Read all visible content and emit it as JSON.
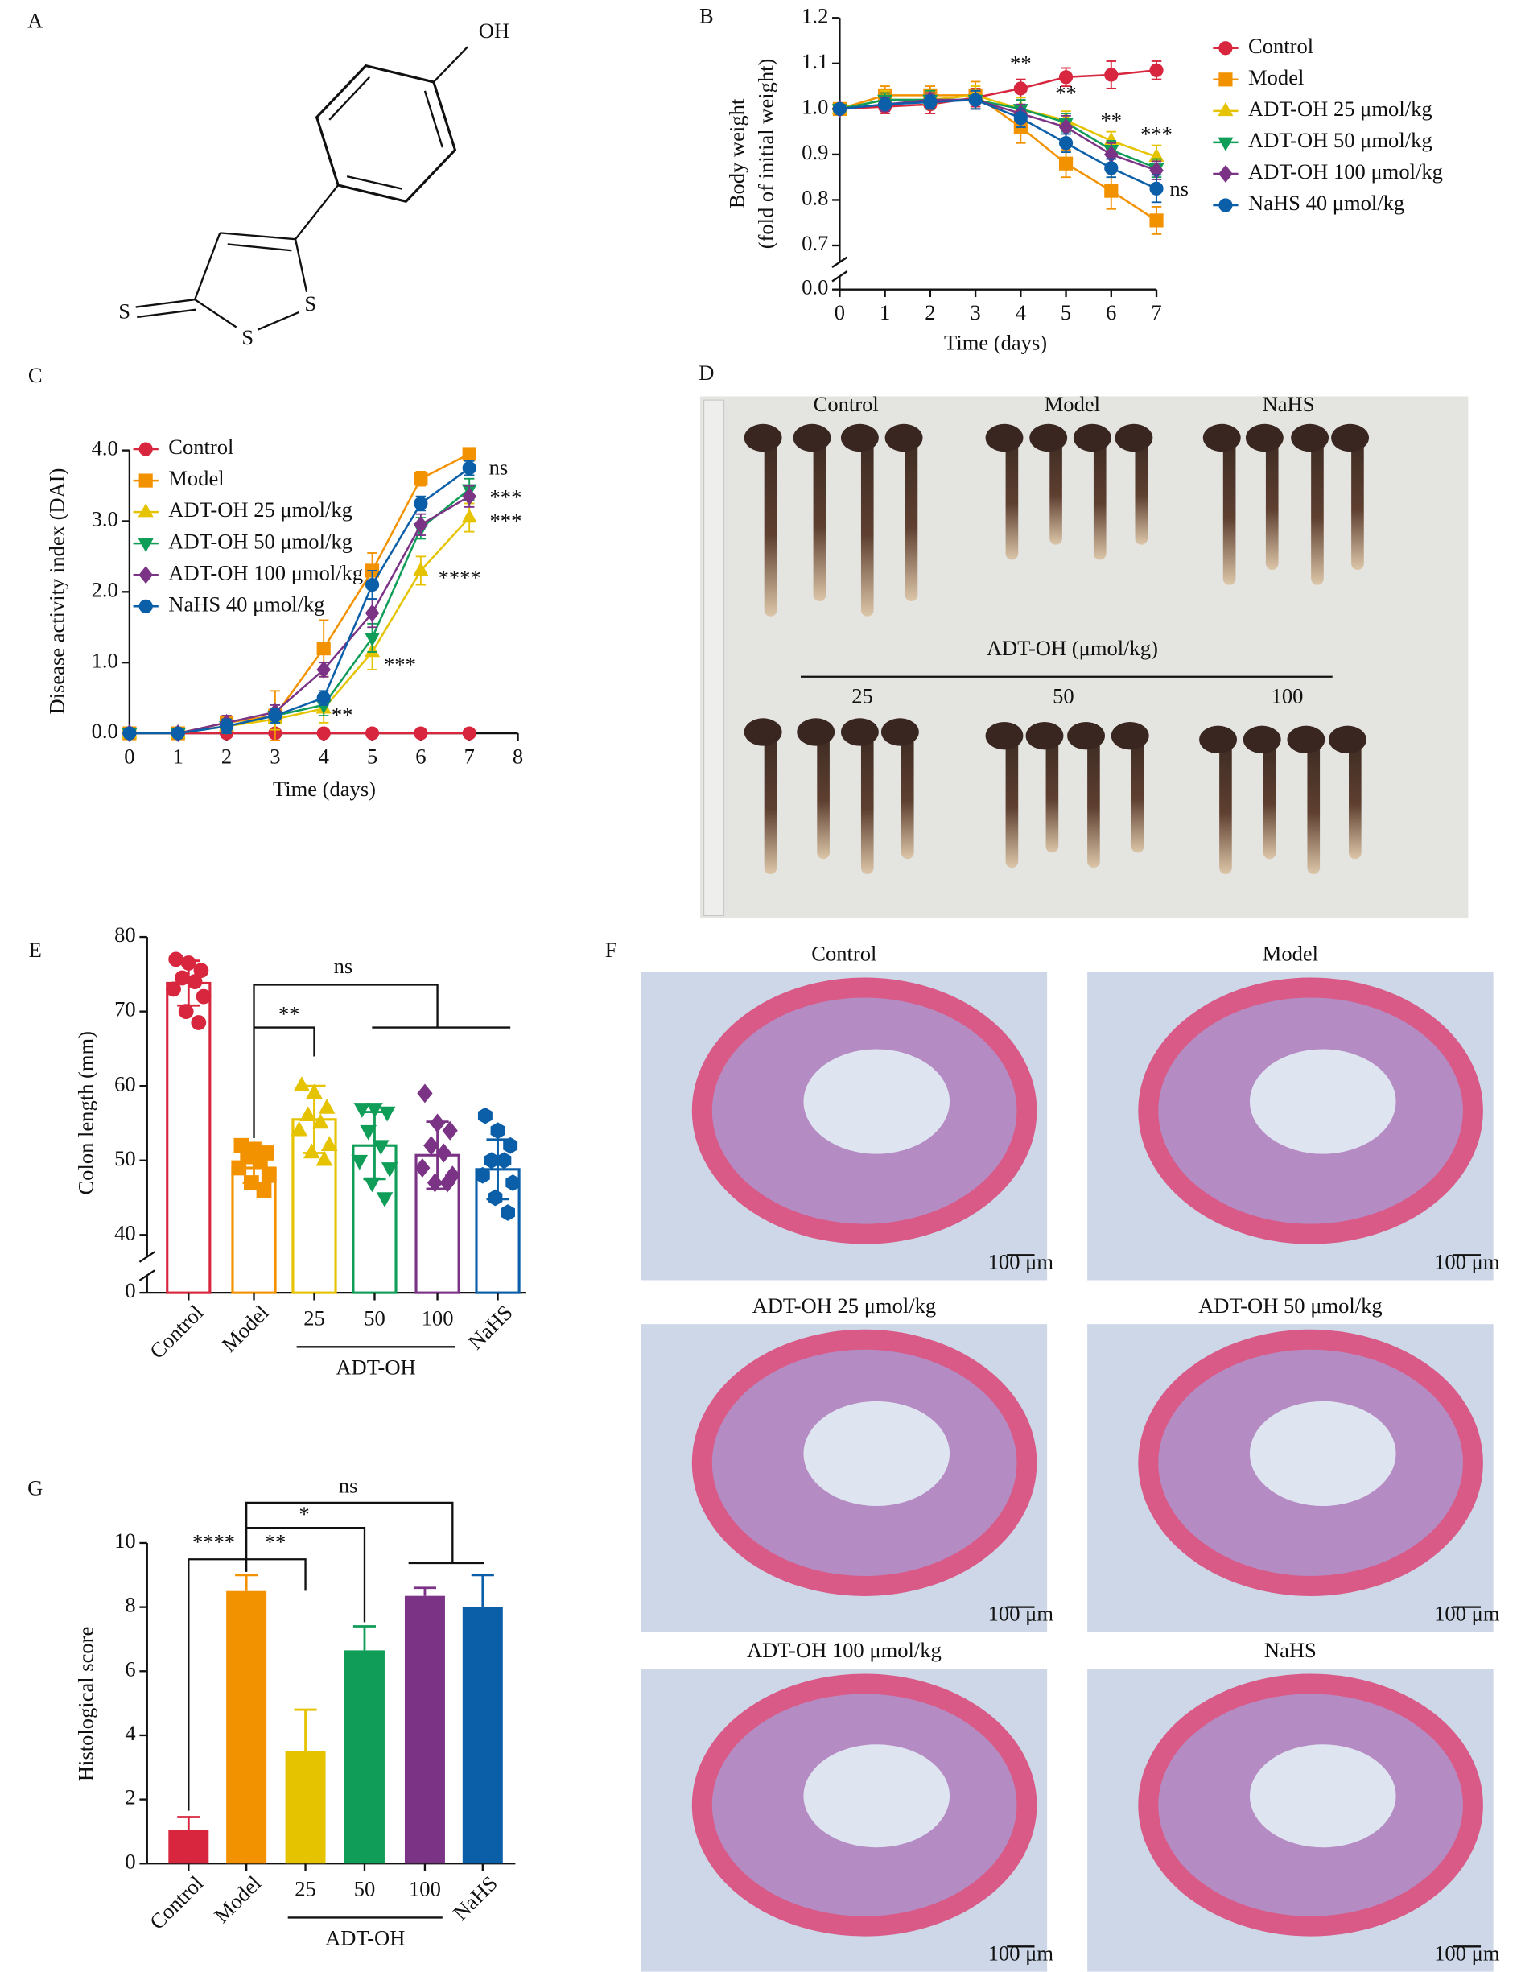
{
  "panels": [
    "A",
    "B",
    "C",
    "D",
    "E",
    "F",
    "G"
  ],
  "structure": {
    "atoms": [
      "OH",
      "S",
      "S",
      "S"
    ]
  },
  "photo": {
    "labels_top": [
      "Control",
      "Model",
      "NaHS"
    ],
    "group_title": "ADT-OH (μmol/kg)",
    "labels_bottom": [
      "25",
      "50",
      "100"
    ]
  },
  "histology": {
    "titles": [
      "Control",
      "Model",
      "ADT-OH 25 μmol/kg",
      "ADT-OH 50 μmol/kg",
      "ADT-OH 100 μmol/kg",
      "NaHS"
    ],
    "scale_bar": "100 μm"
  },
  "chart_data": [
    {
      "type": "line",
      "xlabel": "Time (days)",
      "ylabel": [
        "Body weight",
        "(fold of initial weight)"
      ],
      "x": [
        0,
        1,
        2,
        3,
        4,
        5,
        6,
        7
      ],
      "xlim": [
        0,
        7
      ],
      "xticks": [
        0,
        1,
        2,
        3,
        4,
        5,
        6,
        7
      ],
      "ylim": [
        0,
        1.2
      ],
      "ybreak": [
        0,
        0.7
      ],
      "yticks": [
        {
          "value": 0,
          "label": "0.0"
        },
        0.7,
        0.8,
        0.9,
        {
          "value": 1,
          "label": "1.0"
        },
        1.1,
        1.2
      ],
      "legend": "right",
      "series": [
        {
          "name": "Control",
          "color": "#d7263d",
          "marker": "circle",
          "values": [
            1.0,
            1.005,
            1.01,
            1.025,
            1.045,
            1.07,
            1.075,
            1.085
          ],
          "errors": [
            0,
            0.015,
            0.02,
            0.02,
            0.02,
            0.02,
            0.03,
            0.02
          ]
        },
        {
          "name": "Model",
          "color": "#f39200",
          "marker": "square",
          "values": [
            1.0,
            1.03,
            1.03,
            1.03,
            0.96,
            0.88,
            0.82,
            0.755
          ],
          "errors": [
            0,
            0.02,
            0.02,
            0.03,
            0.035,
            0.03,
            0.04,
            0.03
          ]
        },
        {
          "name": "ADT-OH 25 μmol/kg",
          "color": "#e6c300",
          "marker": "triangle-up",
          "values": [
            1.0,
            1.02,
            1.02,
            1.03,
            1.0,
            0.975,
            0.93,
            0.895
          ],
          "errors": [
            0,
            0.02,
            0.02,
            0.02,
            0.025,
            0.02,
            0.02,
            0.025
          ]
        },
        {
          "name": "ADT-OH 50 μmol/kg",
          "color": "#0f9d58",
          "marker": "triangle-down",
          "values": [
            1.0,
            1.02,
            1.02,
            1.02,
            1.0,
            0.97,
            0.91,
            0.87
          ],
          "errors": [
            0,
            0.015,
            0.02,
            0.02,
            0.02,
            0.02,
            0.02,
            0.02
          ]
        },
        {
          "name": "ADT-OH 100 μmol/kg",
          "color": "#7b3385",
          "marker": "diamond",
          "values": [
            1.0,
            1.01,
            1.02,
            1.02,
            0.99,
            0.96,
            0.9,
            0.865
          ],
          "errors": [
            0,
            0.015,
            0.015,
            0.02,
            0.02,
            0.025,
            0.025,
            0.02
          ]
        },
        {
          "name": "NaHS 40 μmol/kg",
          "color": "#0b5ea8",
          "marker": "circle",
          "values": [
            1.0,
            1.01,
            1.015,
            1.02,
            0.98,
            0.925,
            0.87,
            0.825
          ],
          "errors": [
            0,
            0.01,
            0.015,
            0.02,
            0.02,
            0.02,
            0.02,
            0.03
          ]
        }
      ],
      "annotations": [
        {
          "text": "**",
          "x": 4,
          "y": 1.095
        },
        {
          "text": "**",
          "x": 5,
          "y": 1.03
        },
        {
          "text": "**",
          "x": 6,
          "y": 0.97
        },
        {
          "text": "***",
          "x": 7,
          "y": 0.94
        },
        {
          "text": "ns",
          "x": 7.5,
          "y": 0.82
        }
      ]
    },
    {
      "type": "line",
      "xlabel": "Time (days)",
      "ylabel": [
        "Disease activity index (DAI)"
      ],
      "x": [
        0,
        1,
        2,
        3,
        4,
        5,
        6,
        7
      ],
      "xlim": [
        0,
        8
      ],
      "xticks": [
        0,
        1,
        2,
        3,
        4,
        5,
        6,
        7,
        8
      ],
      "ylim": [
        0,
        4
      ],
      "yticks": [
        {
          "value": 0,
          "label": "0.0"
        },
        {
          "value": 1,
          "label": "1.0"
        },
        {
          "value": 2,
          "label": "2.0"
        },
        {
          "value": 3,
          "label": "3.0"
        },
        {
          "value": 4,
          "label": "4.0"
        }
      ],
      "legend": "upper left",
      "series": [
        {
          "name": "Control",
          "color": "#d7263d",
          "marker": "circle",
          "values": [
            0,
            0,
            0,
            0,
            0,
            0,
            0,
            0
          ],
          "errors": [
            0,
            0,
            0,
            0,
            0,
            0,
            0,
            0
          ]
        },
        {
          "name": "Model",
          "color": "#f39200",
          "marker": "square",
          "values": [
            0,
            0,
            0.15,
            0.25,
            1.2,
            2.3,
            3.6,
            3.95
          ],
          "errors": [
            0,
            0,
            0.1,
            0.35,
            0.4,
            0.25,
            0.1,
            0
          ]
        },
        {
          "name": "ADT-OH 25 μmol/kg",
          "color": "#e6c300",
          "marker": "triangle-up",
          "values": [
            0,
            0,
            0.1,
            0.2,
            0.35,
            1.15,
            2.3,
            3.05
          ],
          "errors": [
            0,
            0,
            0.1,
            0.15,
            0.2,
            0.25,
            0.2,
            0.2
          ]
        },
        {
          "name": "ADT-OH 50 μmol/kg",
          "color": "#0f9d58",
          "marker": "triangle-down",
          "values": [
            0,
            0,
            0.1,
            0.25,
            0.4,
            1.35,
            2.9,
            3.45
          ],
          "errors": [
            0,
            0,
            0.1,
            0.1,
            0.15,
            0.2,
            0.15,
            0.15
          ]
        },
        {
          "name": "ADT-OH 100 μmol/kg",
          "color": "#7b3385",
          "marker": "diamond",
          "values": [
            0,
            0,
            0.15,
            0.3,
            0.9,
            1.7,
            2.95,
            3.35
          ],
          "errors": [
            0,
            0,
            0.1,
            0.1,
            0.1,
            0.2,
            0.15,
            0.15
          ]
        },
        {
          "name": "NaHS 40 μmol/kg",
          "color": "#0b5ea8",
          "marker": "circle",
          "values": [
            0,
            0,
            0.1,
            0.25,
            0.5,
            2.1,
            3.25,
            3.75
          ],
          "errors": [
            0,
            0,
            0.1,
            0.1,
            0.1,
            0.2,
            0.1,
            0.1
          ]
        }
      ],
      "annotations": [
        {
          "text": "ns",
          "x": 7.6,
          "y": 3.73
        },
        {
          "text": "***",
          "x": 7.75,
          "y": 3.31
        },
        {
          "text": "***",
          "x": 7.75,
          "y": 2.97
        },
        {
          "text": "****",
          "x": 6.8,
          "y": 2.17
        },
        {
          "text": "***",
          "x": 5.57,
          "y": 0.94
        },
        {
          "text": "**",
          "x": 4.38,
          "y": 0.23
        }
      ]
    },
    {
      "type": "bar",
      "bar_style": "outline",
      "error_bars": "both",
      "ylabel": [
        "Colon length (mm)"
      ],
      "categories": [
        "Control",
        "Model",
        "25",
        "50",
        "100",
        "NaHS"
      ],
      "group_label": "ADT-OH",
      "colors": [
        "#d7263d",
        "#f39200",
        "#e6c300",
        "#0f9d58",
        "#7b3385",
        "#0b5ea8"
      ],
      "markers": [
        "circle",
        "square",
        "triangle-up",
        "triangle-down",
        "diamond",
        "hexagon"
      ],
      "values": [
        73.8,
        49,
        55.5,
        52,
        50.7,
        48.8
      ],
      "errors": [
        3,
        2,
        4.5,
        4.5,
        4.5,
        4
      ],
      "points": [
        [
          77,
          76.5,
          75.5,
          74.5,
          74,
          73,
          72,
          70,
          68.5
        ],
        [
          52,
          51.5,
          51,
          50.5,
          50,
          49,
          48,
          47,
          46
        ],
        [
          60,
          59,
          57,
          56,
          55,
          54,
          52,
          51,
          50
        ],
        [
          57,
          57,
          56.5,
          54,
          52,
          50,
          49,
          47,
          45
        ],
        [
          59,
          55,
          54,
          52,
          51,
          49,
          48,
          47,
          47
        ],
        [
          56,
          54,
          52,
          50,
          50,
          48,
          47,
          45,
          43
        ]
      ],
      "ylim": [
        0,
        80
      ],
      "ybreak": [
        0,
        40
      ],
      "yticks": [
        0,
        40,
        50,
        60,
        70,
        80
      ],
      "annotations": [
        {
          "text": "ns"
        },
        {
          "text": "**"
        }
      ]
    },
    {
      "type": "bar",
      "bar_style": "solid",
      "error_bars": "up",
      "ylabel": [
        "Histological score"
      ],
      "categories": [
        "Control",
        "Model",
        "25",
        "50",
        "100",
        "NaHS"
      ],
      "group_label": "ADT-OH",
      "colors": [
        "#d7263d",
        "#f39200",
        "#e6c300",
        "#0f9d58",
        "#7b3385",
        "#0b5ea8"
      ],
      "values": [
        1.05,
        8.5,
        3.5,
        6.65,
        8.35,
        8.0
      ],
      "errors": [
        0.4,
        0.5,
        1.3,
        0.75,
        0.25,
        1.0
      ],
      "ylim": [
        0,
        10
      ],
      "yticks": [
        0,
        2,
        4,
        6,
        8,
        10
      ],
      "annotations": [
        {
          "text": "****"
        },
        {
          "text": "**"
        },
        {
          "text": "*"
        },
        {
          "text": "ns"
        }
      ]
    }
  ]
}
